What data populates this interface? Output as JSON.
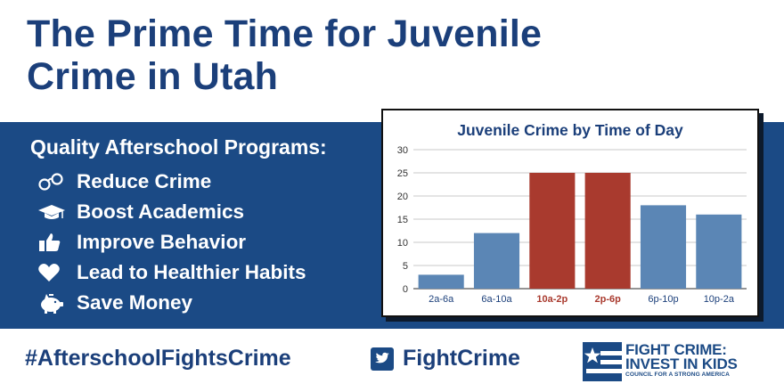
{
  "headline": {
    "line1": "The Prime Time for Juvenile",
    "line2": "Crime in Utah"
  },
  "programs": {
    "title": "Quality Afterschool Programs:",
    "items": [
      {
        "label": "Reduce Crime",
        "icon": "handcuffs-icon"
      },
      {
        "label": "Boost Academics",
        "icon": "graduation-cap-icon"
      },
      {
        "label": "Improve Behavior",
        "icon": "thumbs-up-icon"
      },
      {
        "label": "Lead to Healthier Habits",
        "icon": "heart-icon"
      },
      {
        "label": "Save Money",
        "icon": "piggy-bank-icon"
      }
    ]
  },
  "chart_data": {
    "type": "bar",
    "title": "Juvenile Crime by Time of Day",
    "categories": [
      "2a-6a",
      "6a-10a",
      "10a-2p",
      "2p-6p",
      "6p-10p",
      "10p-2a"
    ],
    "values": [
      3,
      12,
      25,
      25,
      18,
      16
    ],
    "highlighted": [
      false,
      false,
      true,
      true,
      false,
      false
    ],
    "yticks": [
      0,
      5,
      10,
      15,
      20,
      25,
      30
    ],
    "ylim": [
      0,
      30
    ],
    "grid": true,
    "xlabel": "",
    "ylabel": "",
    "colors": {
      "normal": "#5b86b5",
      "highlight": "#a93a2e",
      "title": "#1b3f7a",
      "label_normal": "#1b3f7a",
      "label_highlight": "#a93a2e"
    }
  },
  "footer": {
    "hashtag": "#AfterschoolFightsCrime",
    "twitter_handle": "FightCrime",
    "twitter_icon": "twitter-icon",
    "logo": {
      "line1": "FIGHT CRIME:",
      "line2": "INVEST IN KIDS",
      "line3": "COUNCIL FOR A STRONG AMERICA"
    }
  },
  "colors": {
    "navy": "#1b4a85",
    "headline": "#1b3f7a",
    "white": "#ffffff"
  }
}
